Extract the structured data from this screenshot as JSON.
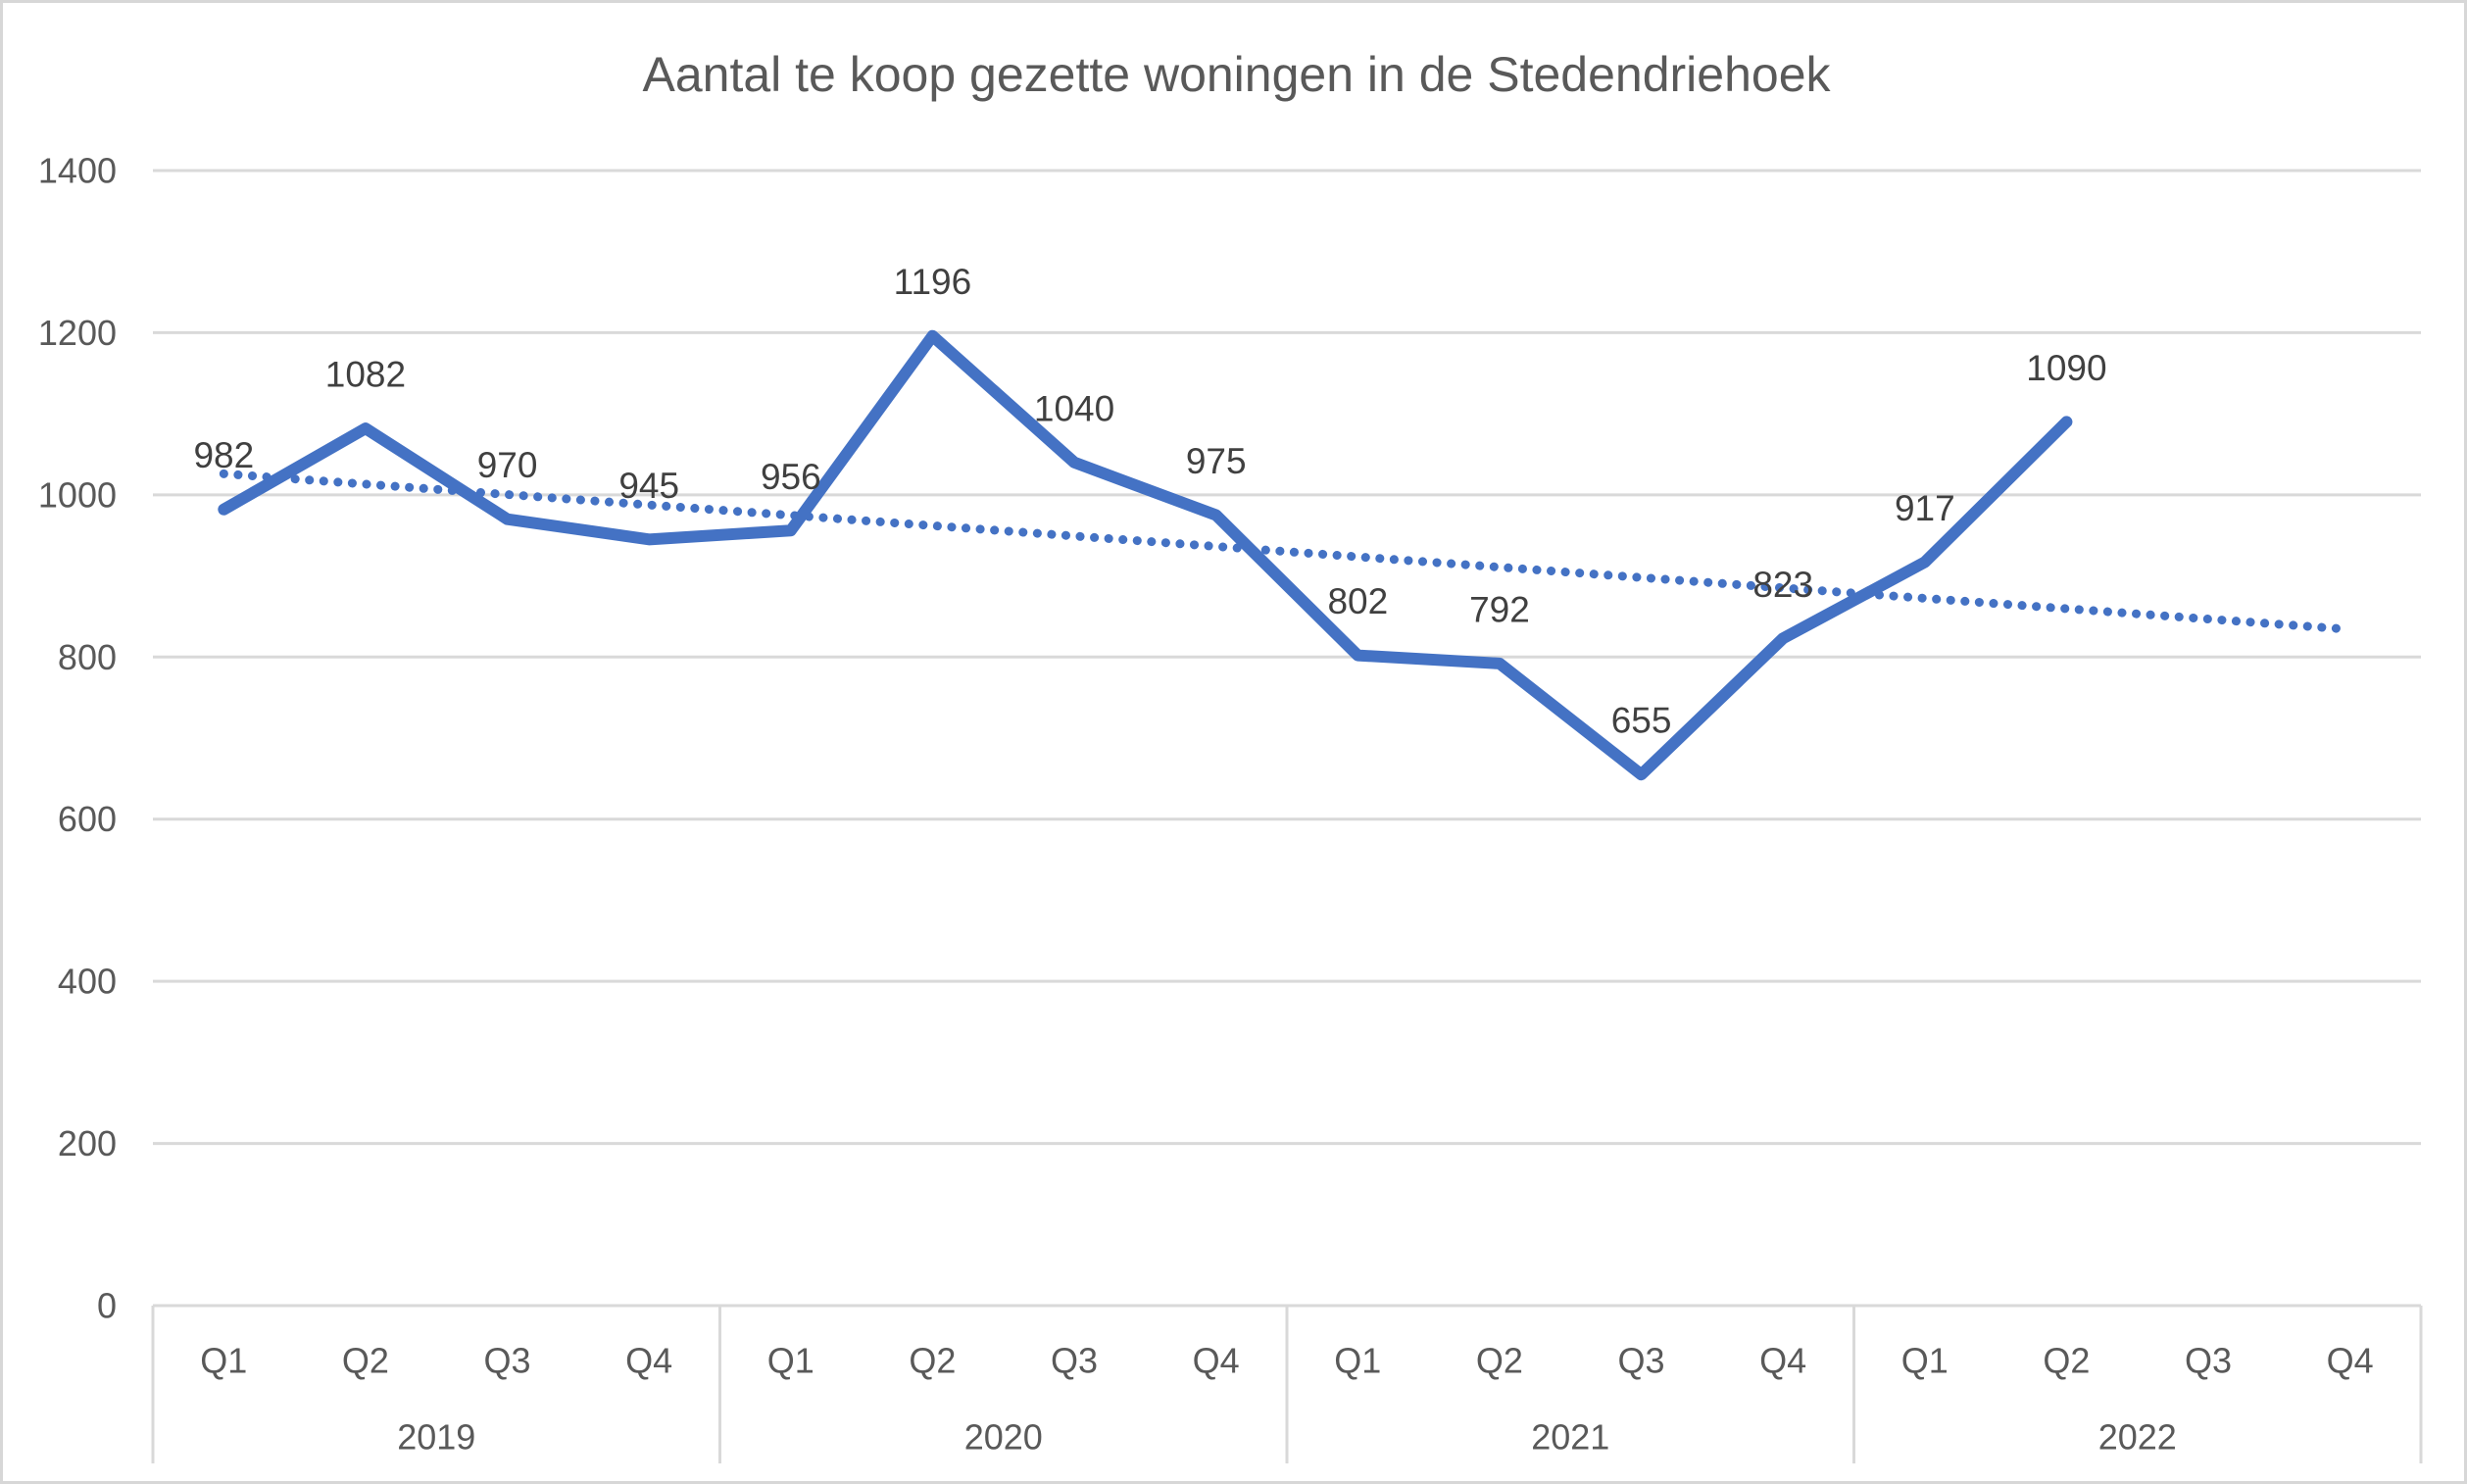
{
  "chart_data": {
    "type": "line",
    "title": "Aantal te koop gezette woningen in de Stedendriehoek",
    "xlabel": "",
    "ylabel": "",
    "ylim": [
      0,
      1400
    ],
    "yticks": [
      0,
      200,
      400,
      600,
      800,
      1000,
      1200,
      1400
    ],
    "grid": "horizontal",
    "legend": "none",
    "x_axis": {
      "years": [
        {
          "label": "2019",
          "quarters": [
            "Q1",
            "Q2",
            "Q3",
            "Q4"
          ]
        },
        {
          "label": "2020",
          "quarters": [
            "Q1",
            "Q2",
            "Q3",
            "Q4"
          ]
        },
        {
          "label": "2021",
          "quarters": [
            "Q1",
            "Q2",
            "Q3",
            "Q4"
          ]
        },
        {
          "label": "2022",
          "quarters": [
            "Q1",
            "Q2",
            "Q3",
            "Q4"
          ]
        }
      ]
    },
    "series": [
      {
        "name": "Aantal te koop gezette woningen",
        "values": [
          982,
          1082,
          970,
          945,
          956,
          1196,
          1040,
          975,
          802,
          792,
          655,
          823,
          917,
          1090,
          null,
          null
        ],
        "data_labels": [
          982,
          1082,
          970,
          945,
          956,
          1196,
          1040,
          975,
          802,
          792,
          655,
          823,
          917,
          1090,
          null,
          null
        ],
        "color": "#4472C4",
        "style": "solid"
      }
    ],
    "trendline": {
      "type": "linear",
      "style": "dotted",
      "color": "#4472C4",
      "start_value": 1026,
      "end_value": 834
    }
  },
  "colors": {
    "accent_blue": "#4472C4",
    "gridline": "#D9D9D9",
    "axis_text": "#595959",
    "title_text": "#595959",
    "data_label_text": "#404040",
    "background": "#FFFFFF"
  }
}
